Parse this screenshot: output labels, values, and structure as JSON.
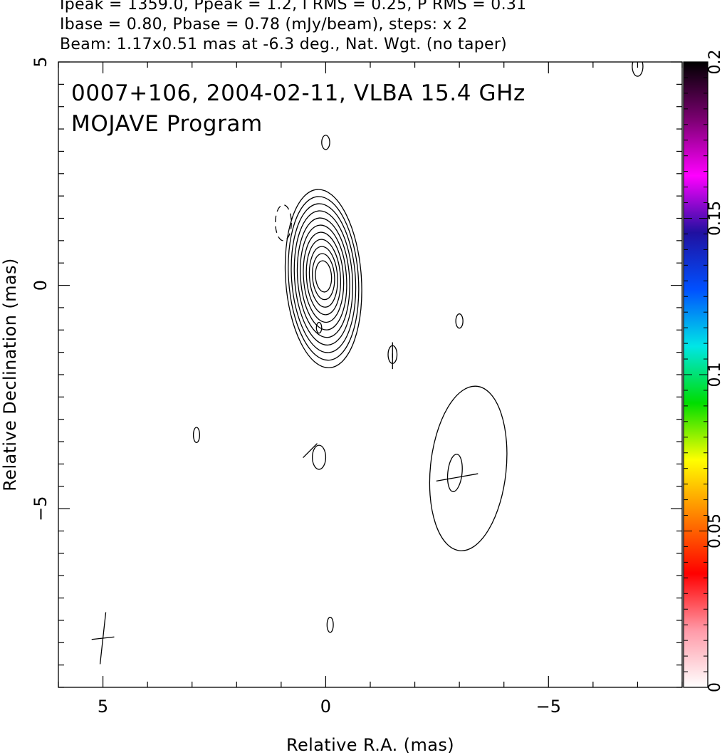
{
  "header": {
    "line1": "Ipeak = 1359.0, Ppeak = 1.2, I RMS = 0.25, P RMS = 0.31",
    "line2": "Ibase = 0.80, Pbase = 0.78 (mJy/beam), steps: x 2",
    "line3": "Beam: 1.17x0.51 mas at -6.3 deg., Nat. Wgt. (no taper)"
  },
  "chart_data": {
    "type": "contour",
    "title": "0007+106, 2004-02-11, VLBA 15.4 GHz",
    "subtitle": "MOJAVE Program",
    "xlabel": "Relative R.A. (mas)",
    "ylabel": "Relative Declination (mas)",
    "xlim": [
      6,
      -8
    ],
    "ylim": [
      -9,
      5
    ],
    "x_ticks": [
      5,
      0,
      -5
    ],
    "x_tick_labels": [
      "5",
      "0",
      "−5"
    ],
    "y_ticks": [
      5,
      0,
      -5
    ],
    "y_tick_labels": [
      "5",
      "0",
      "−5"
    ],
    "colorbar": {
      "range": [
        0,
        0.2
      ],
      "ticks": [
        0,
        0.05,
        0.1,
        0.15,
        0.2
      ],
      "tick_labels": [
        "0",
        "0.05",
        "0.1",
        "0.15",
        "0.2"
      ],
      "colors": [
        "#ffffff",
        "#ff9aa8",
        "#ff0000",
        "#ff8000",
        "#ffff00",
        "#00dd00",
        "#00e6e6",
        "#0050ff",
        "#2010a0",
        "#ff00ff",
        "#7a0070",
        "#000000"
      ]
    },
    "core": {
      "ra": 0.05,
      "dec": 0.2,
      "levels": 11,
      "outer_half_ra": 0.85,
      "outer_half_dec": 2.0,
      "inner_half_ra": 0.18,
      "inner_half_dec": 0.35
    },
    "components": [
      {
        "ra": -3.2,
        "dec": -4.1,
        "half_ra": 0.85,
        "half_dec": 1.85
      },
      {
        "ra": -2.9,
        "dec": -4.2,
        "half_ra": 0.16,
        "half_dec": 0.42
      }
    ],
    "small_contours": [
      {
        "ra": 0.0,
        "dec": 3.2,
        "half_ra": 0.09,
        "half_dec": 0.16,
        "dashed": false
      },
      {
        "ra": 0.95,
        "dec": 1.4,
        "half_ra": 0.18,
        "half_dec": 0.4,
        "dashed": true
      },
      {
        "ra": -3.0,
        "dec": -0.8,
        "half_ra": 0.08,
        "half_dec": 0.16,
        "dashed": false
      },
      {
        "ra": -1.5,
        "dec": -1.55,
        "half_ra": 0.1,
        "half_dec": 0.2,
        "dashed": false
      },
      {
        "ra": 2.9,
        "dec": -3.35,
        "half_ra": 0.07,
        "half_dec": 0.17,
        "dashed": false
      },
      {
        "ra": 0.15,
        "dec": -3.85,
        "half_ra": 0.15,
        "half_dec": 0.27,
        "dashed": false
      },
      {
        "ra": 0.15,
        "dec": -0.95,
        "half_ra": 0.06,
        "half_dec": 0.12,
        "dashed": false
      },
      {
        "ra": -0.1,
        "dec": -7.6,
        "half_ra": 0.07,
        "half_dec": 0.17,
        "dashed": false
      },
      {
        "ra": -7.0,
        "dec": 4.9,
        "half_ra": 0.12,
        "half_dec": 0.22,
        "dashed": false
      }
    ],
    "polarization_vectors": [
      {
        "ra": 0.35,
        "dec": -3.7,
        "length": 0.45,
        "angle_deg": 45
      },
      {
        "ra": -1.5,
        "dec": -1.45,
        "length": 0.35,
        "angle_deg": 90
      },
      {
        "ra": -1.5,
        "dec": -1.7,
        "length": 0.35,
        "angle_deg": 90
      },
      {
        "ra": -2.95,
        "dec": -4.3,
        "length": 0.95,
        "angle_deg": 10
      }
    ],
    "beam": {
      "ra": 5.0,
      "dec": -7.9,
      "major_mas": 1.17,
      "minor_mas": 0.51,
      "pa_deg": -6.3
    }
  }
}
